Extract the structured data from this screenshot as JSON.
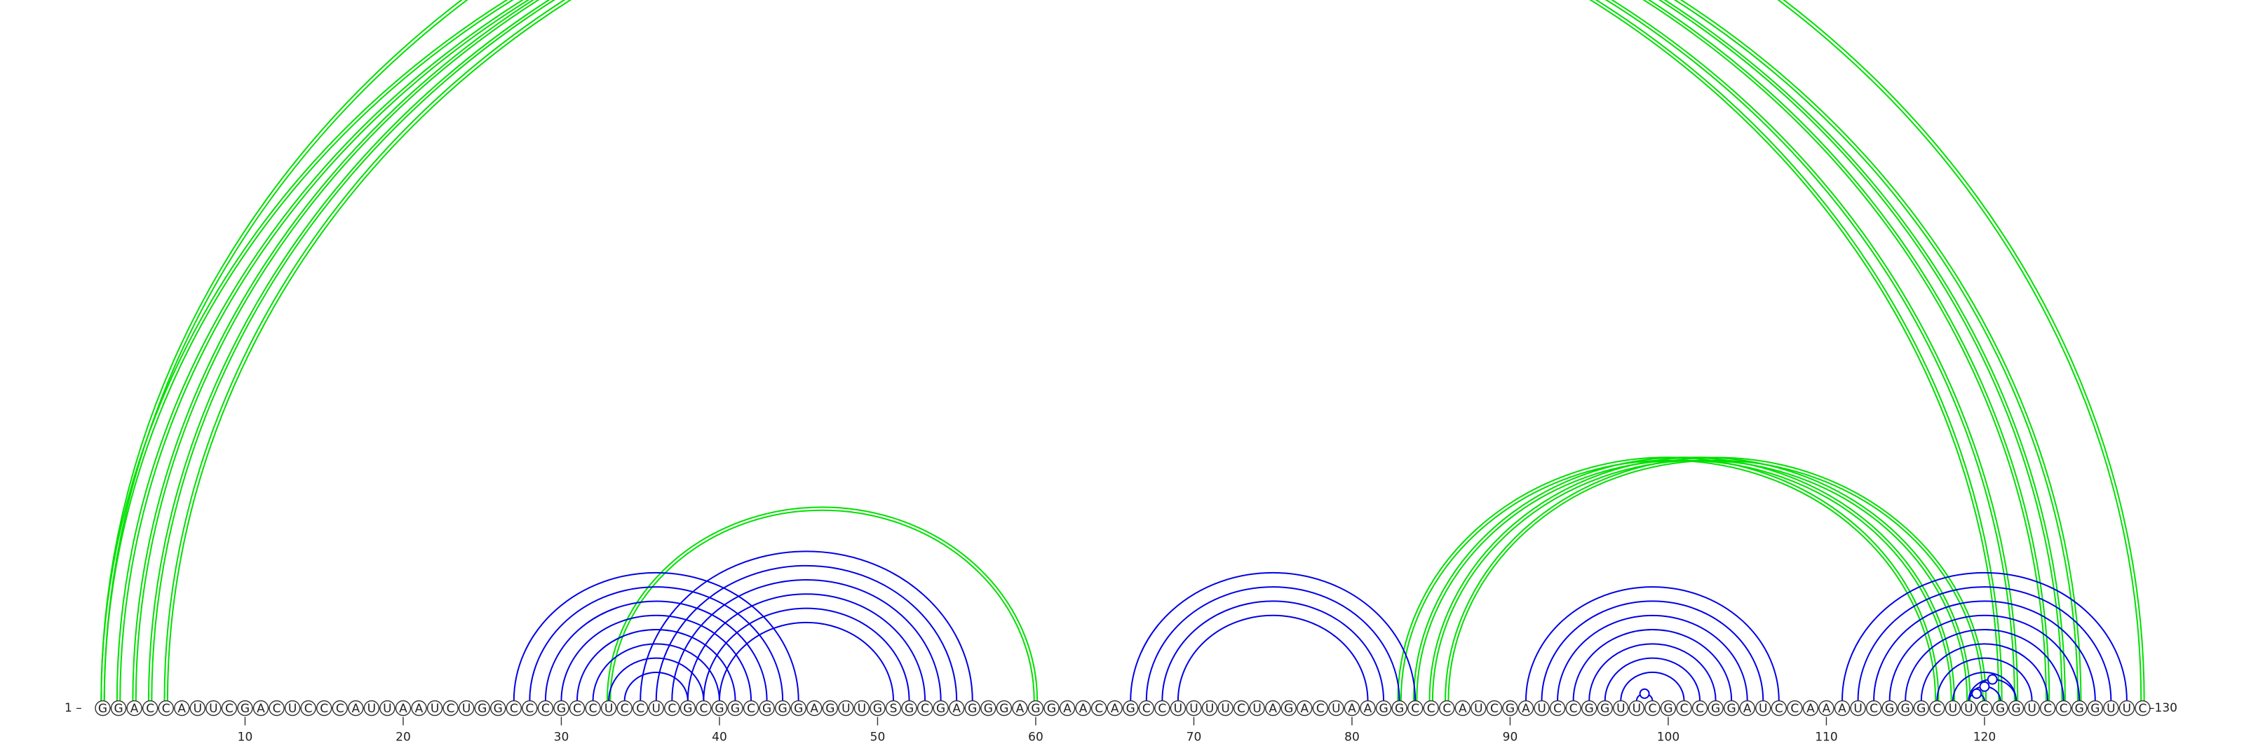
{
  "sequence": "GGACCAUUCGACUCCCAUUAAUCUGGCCCGCCUCCUCGCGGCGGGAGUUGSGCGAGGGAGGAACAGCCUUUUCUAGACUAAGGCCCAUCGAUCCGGUUCGCCGGAUCCAAAUCGGGCUUCGGUCCGGUUC",
  "start_label": "1 –",
  "end_label": "–130",
  "ticks": [
    10,
    20,
    30,
    40,
    50,
    60,
    70,
    80,
    90,
    100,
    110,
    120
  ],
  "colors": {
    "green": "#00e000",
    "blue": "#0000e6",
    "backbone": "#333333"
  },
  "arc_groups": [
    {
      "color": "green",
      "pairs": [
        [
          1,
          121
        ],
        [
          2,
          122
        ],
        [
          3,
          124
        ],
        [
          4,
          125
        ],
        [
          5,
          126
        ]
      ],
      "doubled": true
    },
    {
      "color": "green",
      "pairs": [
        [
          1,
          130
        ]
      ],
      "doubled": true,
      "marker": true
    },
    {
      "color": "green",
      "pairs": [
        [
          33,
          60
        ]
      ],
      "doubled": true
    },
    {
      "color": "green",
      "pairs": [
        [
          83,
          117
        ],
        [
          84,
          118
        ],
        [
          85,
          119
        ],
        [
          86,
          120
        ]
      ],
      "doubled": true
    },
    {
      "color": "blue",
      "pairs": [
        [
          27,
          45
        ],
        [
          28,
          44
        ],
        [
          29,
          43
        ],
        [
          30,
          42
        ],
        [
          31,
          41
        ],
        [
          32,
          40
        ],
        [
          33,
          39
        ],
        [
          34,
          38
        ]
      ]
    },
    {
      "color": "blue",
      "pairs": [
        [
          35,
          56
        ],
        [
          36,
          55
        ],
        [
          37,
          54
        ],
        [
          38,
          53
        ],
        [
          39,
          52
        ],
        [
          40,
          51
        ]
      ]
    },
    {
      "color": "blue",
      "pairs": [
        [
          66,
          84
        ],
        [
          67,
          83
        ],
        [
          68,
          82
        ],
        [
          69,
          81
        ]
      ]
    },
    {
      "color": "blue",
      "pairs": [
        [
          91,
          107
        ],
        [
          92,
          106
        ],
        [
          93,
          105
        ],
        [
          94,
          104
        ],
        [
          95,
          103
        ],
        [
          96,
          102
        ],
        [
          97,
          101
        ]
      ]
    },
    {
      "color": "blue",
      "pairs": [
        [
          98,
          99
        ]
      ],
      "marker": true
    },
    {
      "color": "blue",
      "pairs": [
        [
          111,
          129
        ],
        [
          112,
          128
        ],
        [
          113,
          127
        ],
        [
          114,
          126
        ],
        [
          115,
          125
        ],
        [
          116,
          124
        ],
        [
          117,
          123
        ],
        [
          118,
          122
        ]
      ]
    },
    {
      "color": "blue",
      "pairs": [
        [
          119,
          120
        ]
      ],
      "marker": true
    },
    {
      "color": "blue",
      "pairs": [
        [
          119,
          121
        ]
      ],
      "marker": true
    },
    {
      "color": "blue",
      "pairs": [
        [
          119,
          122
        ]
      ],
      "marker": true
    }
  ]
}
